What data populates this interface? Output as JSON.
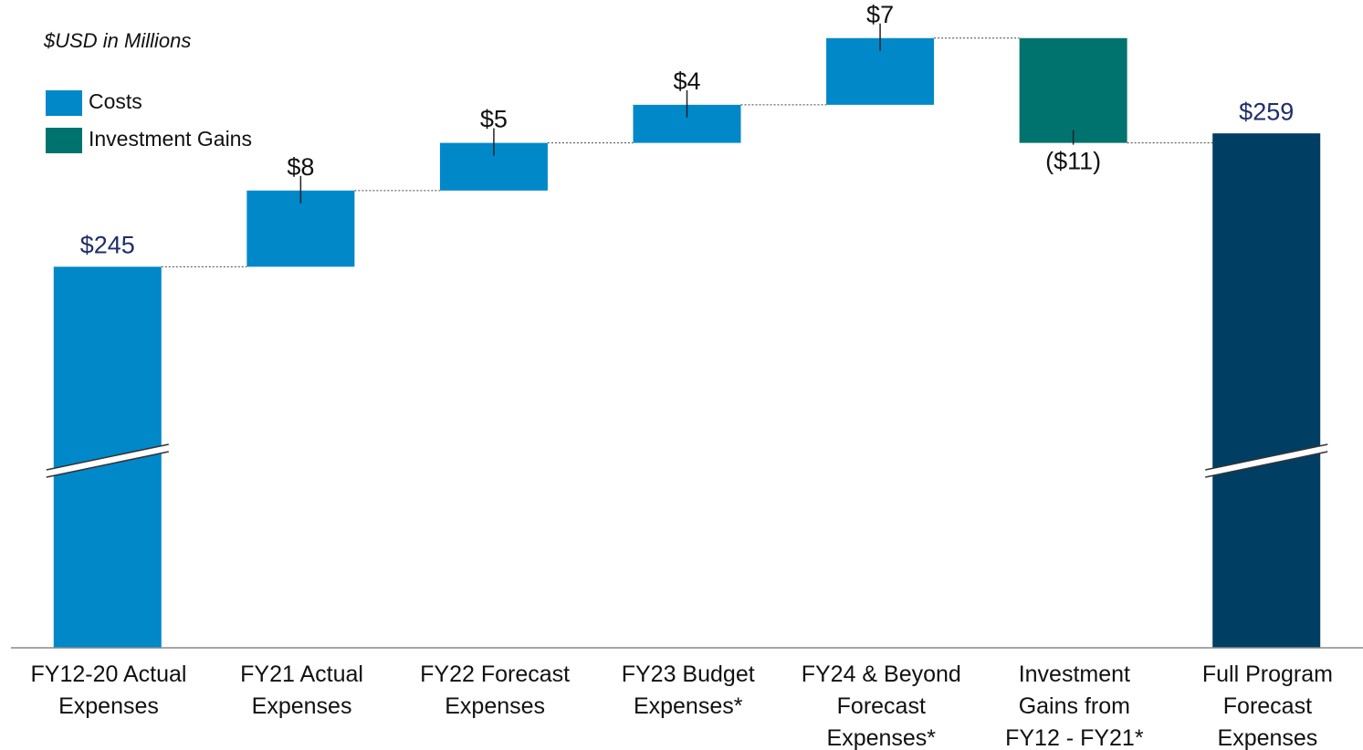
{
  "chart_data": {
    "type": "waterfall",
    "subtitle": "$USD in Millions",
    "categories": [
      "FY12-20 Actual\nExpenses",
      "FY21 Actual\nExpenses",
      "FY22 Forecast\nExpenses",
      "FY23 Budget\nExpenses*",
      "FY24 & Beyond\nForecast\nExpenses*",
      "Investment\nGains from\nFY12 - FY21*",
      "Full Program\nForecast\nExpenses"
    ],
    "values": [
      245,
      8,
      5,
      4,
      7,
      -11,
      259
    ],
    "value_labels": [
      "$245",
      "$8",
      "$5",
      "$4",
      "$7",
      "($11)",
      "$259"
    ],
    "is_total": [
      true,
      false,
      false,
      false,
      false,
      false,
      true
    ],
    "colors": [
      "#0088c9",
      "#0088c9",
      "#0088c9",
      "#0088c9",
      "#0088c9",
      "#00736e",
      "#003f63"
    ],
    "legend": [
      {
        "name": "Costs",
        "color": "#0088c9"
      },
      {
        "name": "Investment Gains",
        "color": "#00736e"
      }
    ],
    "ylim": [
      205,
      273
    ],
    "axis_break": true
  }
}
